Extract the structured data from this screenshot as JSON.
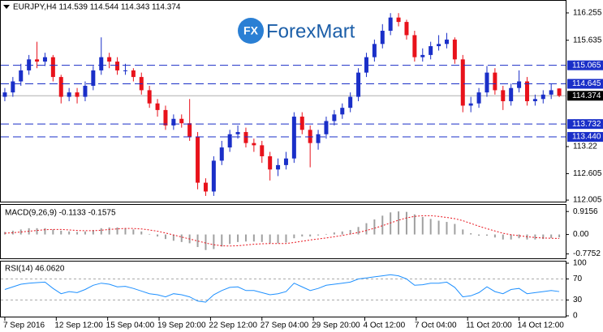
{
  "chart_data": {
    "type": "candlestick",
    "title": "EURJPY,H4  114.539 114.544 114.343 114.374",
    "logo": "ForexMart",
    "logo_icon": "FX",
    "ylim": [
      111.97,
      116.53
    ],
    "yticks": [
      116.255,
      115.635,
      113.22,
      112.605,
      112.005
    ],
    "levels": [
      115.065,
      114.645,
      113.732,
      {
        "value": 113.44,
        "label": "113.440"
      }
    ],
    "level_color": "#1a2fc8",
    "last_price": 114.374,
    "up_color": "#1a2fc8",
    "down_color": "#e8121b",
    "xlim": [
      -0.5,
      69.8
    ],
    "xticks": [
      {
        "value": 0,
        "label": "7 Sep 2016"
      },
      {
        "value": 6.4,
        "label": "12 Sep 12:00"
      },
      {
        "value": 12.8,
        "label": "15 Sep 04:00"
      },
      {
        "value": 19.2,
        "label": "19 Sep 20:00"
      },
      {
        "value": 25.6,
        "label": "22 Sep 12:00"
      },
      {
        "value": 32,
        "label": "27 Sep 04:00"
      },
      {
        "value": 38.4,
        "label": "29 Sep 20:00"
      },
      {
        "value": 44.8,
        "label": "4 Oct 12:00"
      },
      {
        "value": 51.2,
        "label": "7 Oct 04:00"
      },
      {
        "value": 57.6,
        "label": "11 Oct 20:00"
      },
      {
        "value": 64,
        "label": "14 Oct 12:00"
      }
    ],
    "open": [
      114.35,
      114.45,
      114.7,
      114.95,
      115.2,
      115.15,
      115.25,
      114.8,
      114.35,
      114.45,
      114.35,
      114.6,
      114.95,
      115.25,
      115.15,
      114.95,
      114.95,
      114.8,
      114.5,
      114.2,
      114.05,
      113.7,
      113.85,
      113.75,
      113.45,
      112.4,
      112.2,
      112.9,
      113.2,
      113.5,
      113.55,
      113.3,
      113.25,
      113.0,
      112.7,
      112.8,
      112.95,
      113.9,
      113.6,
      113.3,
      113.5,
      113.8,
      113.95,
      114.1,
      114.35,
      114.9,
      115.25,
      115.55,
      115.85,
      116.15,
      116.05,
      115.75,
      115.25,
      115.3,
      115.5,
      115.55,
      115.65,
      115.2,
      114.15,
      114.2,
      114.45,
      114.9,
      114.5,
      114.25,
      114.55,
      114.7,
      114.25,
      114.3,
      114.4,
      114.539
    ],
    "high": [
      114.55,
      114.8,
      115.1,
      115.3,
      115.6,
      115.35,
      115.3,
      114.85,
      114.55,
      114.55,
      114.7,
      115.05,
      115.7,
      115.35,
      115.25,
      115.1,
      115.0,
      114.9,
      114.6,
      114.3,
      114.15,
      113.95,
      113.95,
      114.3,
      113.55,
      112.5,
      113.0,
      113.35,
      113.6,
      113.7,
      113.65,
      113.4,
      113.35,
      113.1,
      112.95,
      113.1,
      114.0,
      114.0,
      113.7,
      113.6,
      113.9,
      114.05,
      114.2,
      114.45,
      115.0,
      115.35,
      115.65,
      116.0,
      116.25,
      116.25,
      116.1,
      115.85,
      115.45,
      115.6,
      115.75,
      115.8,
      115.7,
      115.3,
      114.35,
      114.55,
      115.05,
      115.0,
      114.6,
      114.65,
      114.95,
      114.8,
      114.4,
      114.5,
      114.65,
      114.544
    ],
    "low": [
      114.25,
      114.35,
      114.6,
      114.85,
      115.0,
      115.05,
      114.7,
      114.2,
      114.25,
      114.2,
      114.25,
      114.5,
      114.85,
      115.0,
      114.85,
      114.85,
      114.7,
      114.4,
      114.1,
      113.9,
      113.6,
      113.6,
      113.65,
      113.35,
      112.25,
      112.1,
      112.1,
      112.8,
      113.1,
      113.4,
      113.2,
      113.1,
      112.85,
      112.45,
      112.55,
      112.7,
      112.85,
      113.5,
      112.75,
      113.15,
      113.4,
      113.7,
      113.85,
      114.0,
      114.25,
      114.8,
      115.15,
      115.45,
      115.75,
      115.95,
      115.65,
      115.15,
      115.15,
      115.2,
      115.4,
      115.45,
      115.1,
      114.0,
      114.0,
      114.1,
      114.35,
      114.4,
      114.05,
      114.15,
      114.45,
      114.15,
      114.15,
      114.2,
      114.3,
      114.343
    ],
    "close": [
      114.45,
      114.7,
      114.95,
      115.2,
      115.15,
      115.25,
      114.8,
      114.35,
      114.45,
      114.35,
      114.6,
      114.95,
      115.25,
      115.15,
      114.95,
      114.95,
      114.8,
      114.5,
      114.2,
      114.05,
      113.7,
      113.85,
      113.75,
      113.45,
      112.4,
      112.2,
      112.9,
      113.2,
      113.5,
      113.55,
      113.3,
      113.25,
      113.0,
      112.7,
      112.8,
      112.95,
      113.9,
      113.6,
      113.3,
      113.5,
      113.8,
      113.95,
      114.1,
      114.35,
      114.9,
      115.25,
      115.55,
      115.85,
      116.15,
      116.05,
      115.75,
      115.25,
      115.3,
      115.5,
      115.55,
      115.65,
      115.2,
      114.15,
      114.2,
      114.45,
      114.9,
      114.5,
      114.25,
      114.55,
      114.7,
      114.25,
      114.3,
      114.4,
      114.5,
      114.374
    ],
    "macd": {
      "title": "MACD(9,26,9) -0.1133 -0.1575",
      "ylim": [
        -0.95,
        1.18
      ],
      "yticks": [
        0.9156,
        {
          "value": 0,
          "label": "0.00"
        },
        -0.7752
      ],
      "hist_color": "#a0a0a0",
      "signal_color": "#e8121b",
      "histogram": [
        0.1,
        0.15,
        0.2,
        0.25,
        0.25,
        0.25,
        0.2,
        0.15,
        0.12,
        0.1,
        0.12,
        0.18,
        0.25,
        0.28,
        0.28,
        0.25,
        0.2,
        0.12,
        0.02,
        -0.08,
        -0.18,
        -0.25,
        -0.3,
        -0.35,
        -0.5,
        -0.62,
        -0.58,
        -0.48,
        -0.38,
        -0.3,
        -0.28,
        -0.28,
        -0.3,
        -0.35,
        -0.35,
        -0.32,
        -0.15,
        -0.08,
        -0.08,
        -0.04,
        0.02,
        0.08,
        0.12,
        0.18,
        0.3,
        0.45,
        0.6,
        0.75,
        0.88,
        0.92,
        0.9,
        0.8,
        0.7,
        0.62,
        0.55,
        0.5,
        0.42,
        0.2,
        0.05,
        -0.05,
        -0.05,
        -0.12,
        -0.2,
        -0.2,
        -0.15,
        -0.2,
        -0.2,
        -0.18,
        -0.14,
        -0.1133
      ],
      "signal": [
        0.05,
        0.07,
        0.1,
        0.13,
        0.16,
        0.19,
        0.2,
        0.2,
        0.18,
        0.16,
        0.15,
        0.15,
        0.17,
        0.2,
        0.22,
        0.24,
        0.24,
        0.22,
        0.18,
        0.13,
        0.06,
        -0.02,
        -0.1,
        -0.18,
        -0.26,
        -0.34,
        -0.41,
        -0.45,
        -0.46,
        -0.45,
        -0.42,
        -0.39,
        -0.37,
        -0.36,
        -0.36,
        -0.36,
        -0.32,
        -0.27,
        -0.22,
        -0.18,
        -0.14,
        -0.09,
        -0.04,
        0.02,
        0.08,
        0.16,
        0.25,
        0.35,
        0.46,
        0.57,
        0.66,
        0.72,
        0.75,
        0.75,
        0.72,
        0.68,
        0.63,
        0.55,
        0.44,
        0.33,
        0.23,
        0.14,
        0.05,
        -0.01,
        -0.05,
        -0.09,
        -0.12,
        -0.14,
        -0.15,
        -0.1575
      ]
    },
    "rsi": {
      "title": "RSI(14) 46.0620",
      "ylim": [
        0,
        100
      ],
      "yticks": [
        100,
        70,
        30,
        0
      ],
      "levels": [
        70,
        30
      ],
      "color": "#1e90ff",
      "values": [
        50,
        55,
        60,
        62,
        63,
        64,
        52,
        42,
        46,
        44,
        50,
        58,
        62,
        60,
        55,
        56,
        52,
        47,
        42,
        40,
        36,
        42,
        40,
        36,
        28,
        26,
        40,
        48,
        54,
        55,
        48,
        48,
        44,
        40,
        42,
        46,
        62,
        55,
        48,
        52,
        58,
        60,
        62,
        64,
        70,
        72,
        74,
        76,
        78,
        76,
        70,
        58,
        59,
        62,
        62,
        64,
        54,
        36,
        38,
        44,
        55,
        46,
        42,
        50,
        52,
        42,
        44,
        46,
        48,
        46.062
      ]
    }
  }
}
